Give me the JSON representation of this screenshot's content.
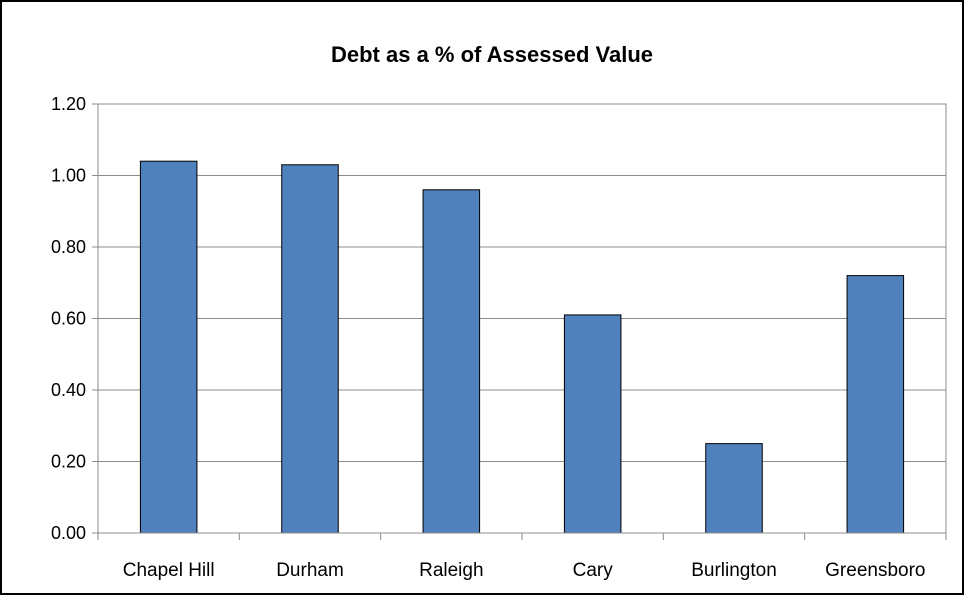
{
  "chart_data": {
    "type": "bar",
    "title": "Debt as a % of Assessed Value",
    "xlabel": "",
    "ylabel": "",
    "categories": [
      "Chapel Hill",
      "Durham",
      "Raleigh",
      "Cary",
      "Burlington",
      "Greensboro"
    ],
    "values": [
      1.04,
      1.03,
      0.96,
      0.61,
      0.25,
      0.72
    ],
    "ylim": [
      0,
      1.2
    ],
    "yticks": [
      "0.00",
      "0.20",
      "0.40",
      "0.60",
      "0.80",
      "1.00",
      "1.20"
    ],
    "grid": true,
    "legend": "none",
    "bar_color": "#4F81BD",
    "bar_edge_color": "#000000"
  }
}
